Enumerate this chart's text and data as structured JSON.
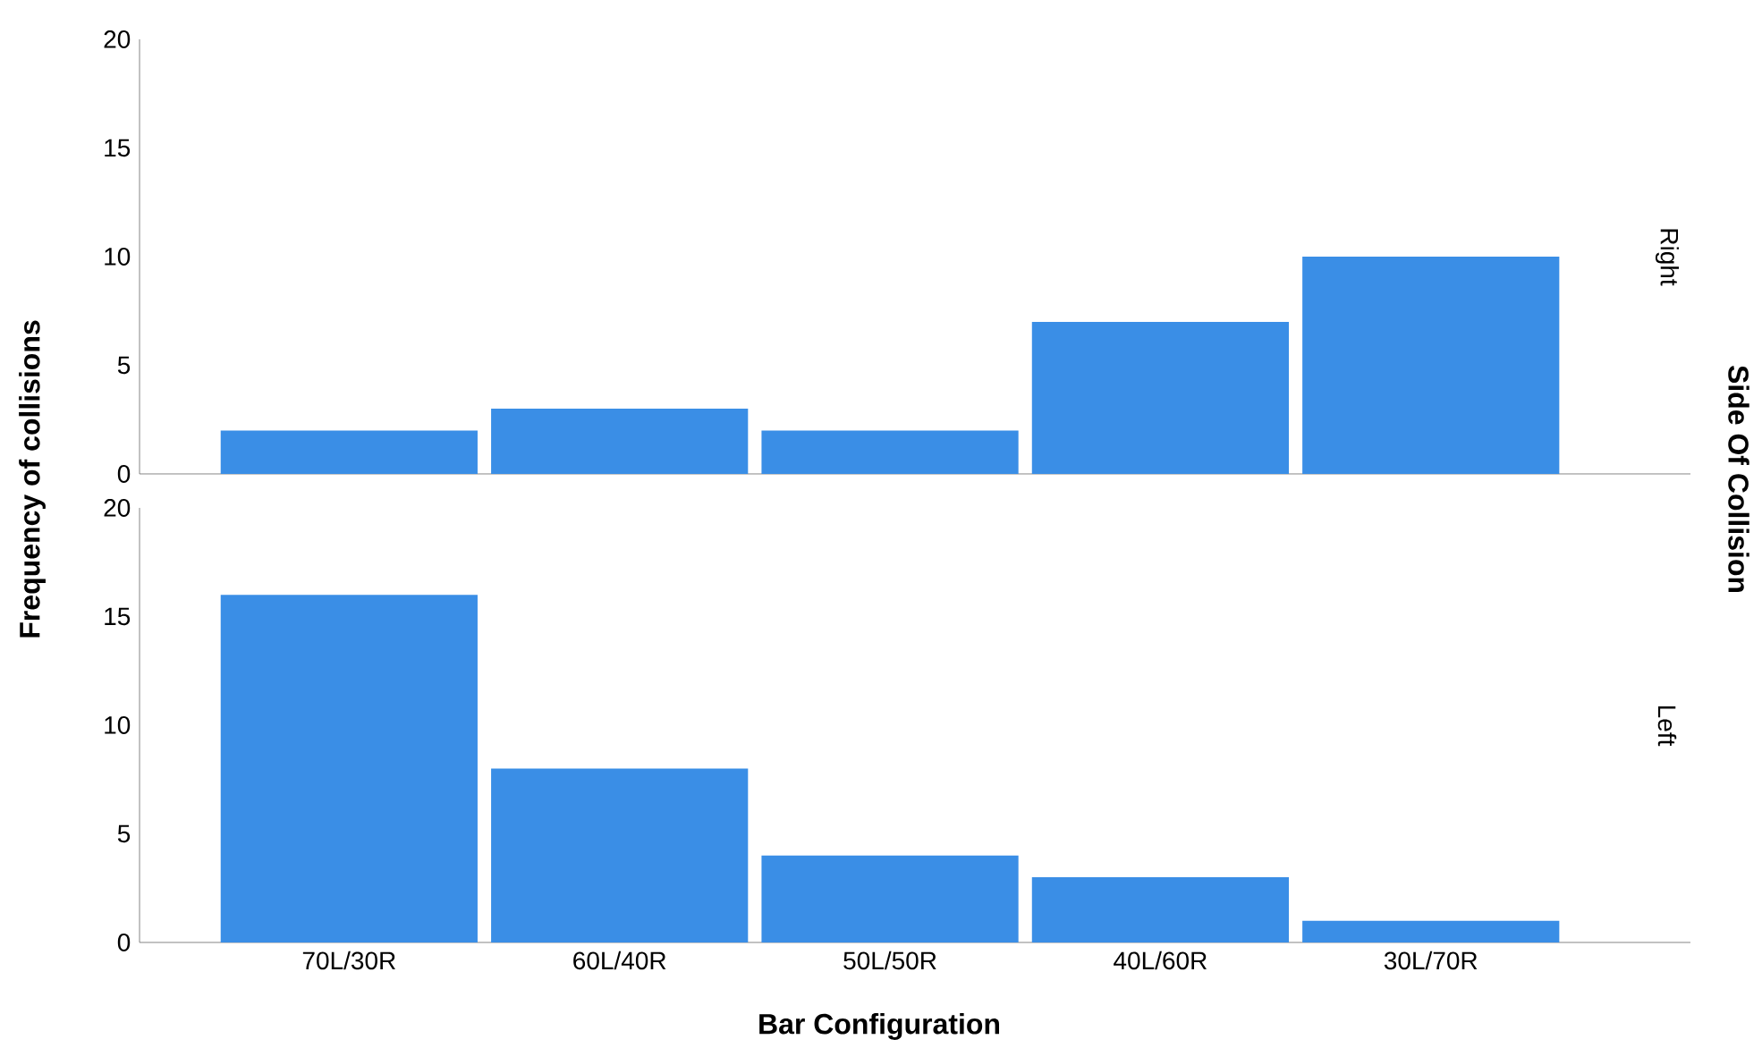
{
  "chart_data": [
    {
      "type": "bar",
      "title": "Right",
      "ylabel": "Frequency of collisions",
      "y2label": "Side Of Collision",
      "categories": [
        null,
        null,
        null,
        null,
        null
      ],
      "values": [
        2,
        3,
        2,
        7,
        10
      ],
      "color": "#3a8ee6",
      "ylim": [
        0,
        20
      ],
      "yticks": [
        0,
        5,
        10,
        15,
        20
      ],
      "tick_labels": "y"
    },
    {
      "type": "bar",
      "title": "Left",
      "xlabel": "Bar Configuration",
      "categories": [
        "70L/30R",
        "60L/40R",
        "50L/50R",
        "40L/60R",
        "30L/70R"
      ],
      "values": [
        16,
        8,
        4,
        3,
        1
      ],
      "color": "#3a8ee6",
      "ylim": [
        0,
        20
      ],
      "yticks": [
        0,
        5,
        10,
        15,
        20
      ]
    }
  ]
}
